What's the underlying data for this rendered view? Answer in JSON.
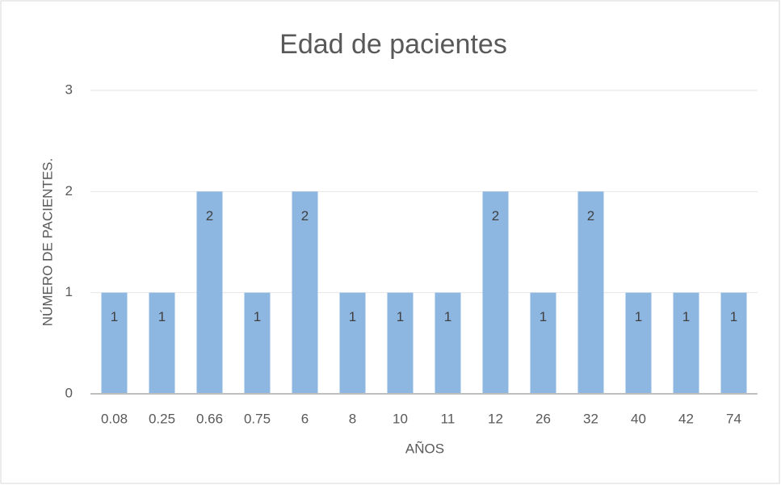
{
  "chart_data": {
    "type": "bar",
    "title": "Edad de pacientes",
    "x_label": "AÑOS",
    "y_label": "NÚMERO DE PACIENTES.",
    "categories": [
      "0.08",
      "0.25",
      "0.66",
      "0.75",
      "6",
      "8",
      "10",
      "11",
      "12",
      "26",
      "32",
      "40",
      "42",
      "74"
    ],
    "values": [
      1,
      1,
      2,
      1,
      2,
      1,
      1,
      1,
      2,
      1,
      2,
      1,
      1,
      1
    ],
    "color": "#8db6e1",
    "ylim": [
      0,
      3
    ],
    "yticks": [
      0,
      1,
      2,
      3
    ],
    "grid": true
  }
}
